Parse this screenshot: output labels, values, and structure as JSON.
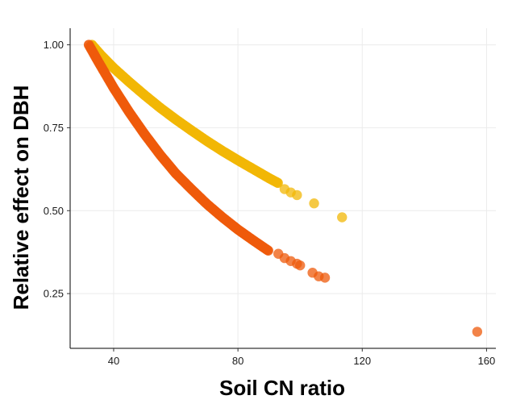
{
  "chart_data": {
    "type": "scatter",
    "xlabel": "Soil CN ratio",
    "ylabel": "Relative effect on DBH",
    "xlim": [
      26,
      163
    ],
    "ylim": [
      0.085,
      1.05
    ],
    "x_ticks": [
      40,
      80,
      120,
      160
    ],
    "x_tick_labels": [
      "40",
      "80",
      "120",
      "160"
    ],
    "y_ticks": [
      0.25,
      0.5,
      0.75,
      1.0
    ],
    "y_tick_labels": [
      "0.25",
      "0.50",
      "0.75",
      "1.00"
    ],
    "grid": true,
    "series": [
      {
        "color": "#F2B705",
        "dense_curve": [
          [
            33,
            1.0
          ],
          [
            36,
            0.968
          ],
          [
            40,
            0.93
          ],
          [
            45,
            0.888
          ],
          [
            50,
            0.848
          ],
          [
            55,
            0.81
          ],
          [
            60,
            0.775
          ],
          [
            65,
            0.742
          ],
          [
            70,
            0.71
          ],
          [
            75,
            0.68
          ],
          [
            80,
            0.652
          ],
          [
            85,
            0.625
          ],
          [
            90,
            0.598
          ],
          [
            93,
            0.583
          ]
        ],
        "points": [
          [
            95,
            0.565
          ],
          [
            97,
            0.555
          ],
          [
            99,
            0.547
          ],
          [
            104.5,
            0.522
          ],
          [
            113.5,
            0.48
          ]
        ]
      },
      {
        "color": "#EE5A0B",
        "dense_curve": [
          [
            32,
            1.0
          ],
          [
            35,
            0.95
          ],
          [
            40,
            0.87
          ],
          [
            45,
            0.797
          ],
          [
            50,
            0.73
          ],
          [
            55,
            0.668
          ],
          [
            60,
            0.612
          ],
          [
            65,
            0.565
          ],
          [
            70,
            0.52
          ],
          [
            75,
            0.48
          ],
          [
            80,
            0.443
          ],
          [
            85,
            0.41
          ],
          [
            90,
            0.378
          ]
        ],
        "points": [
          [
            93,
            0.37
          ],
          [
            95,
            0.357
          ],
          [
            97,
            0.348
          ],
          [
            99,
            0.34
          ],
          [
            100,
            0.335
          ],
          [
            104,
            0.313
          ],
          [
            106,
            0.302
          ],
          [
            108,
            0.298
          ],
          [
            157,
            0.135
          ]
        ]
      }
    ]
  }
}
